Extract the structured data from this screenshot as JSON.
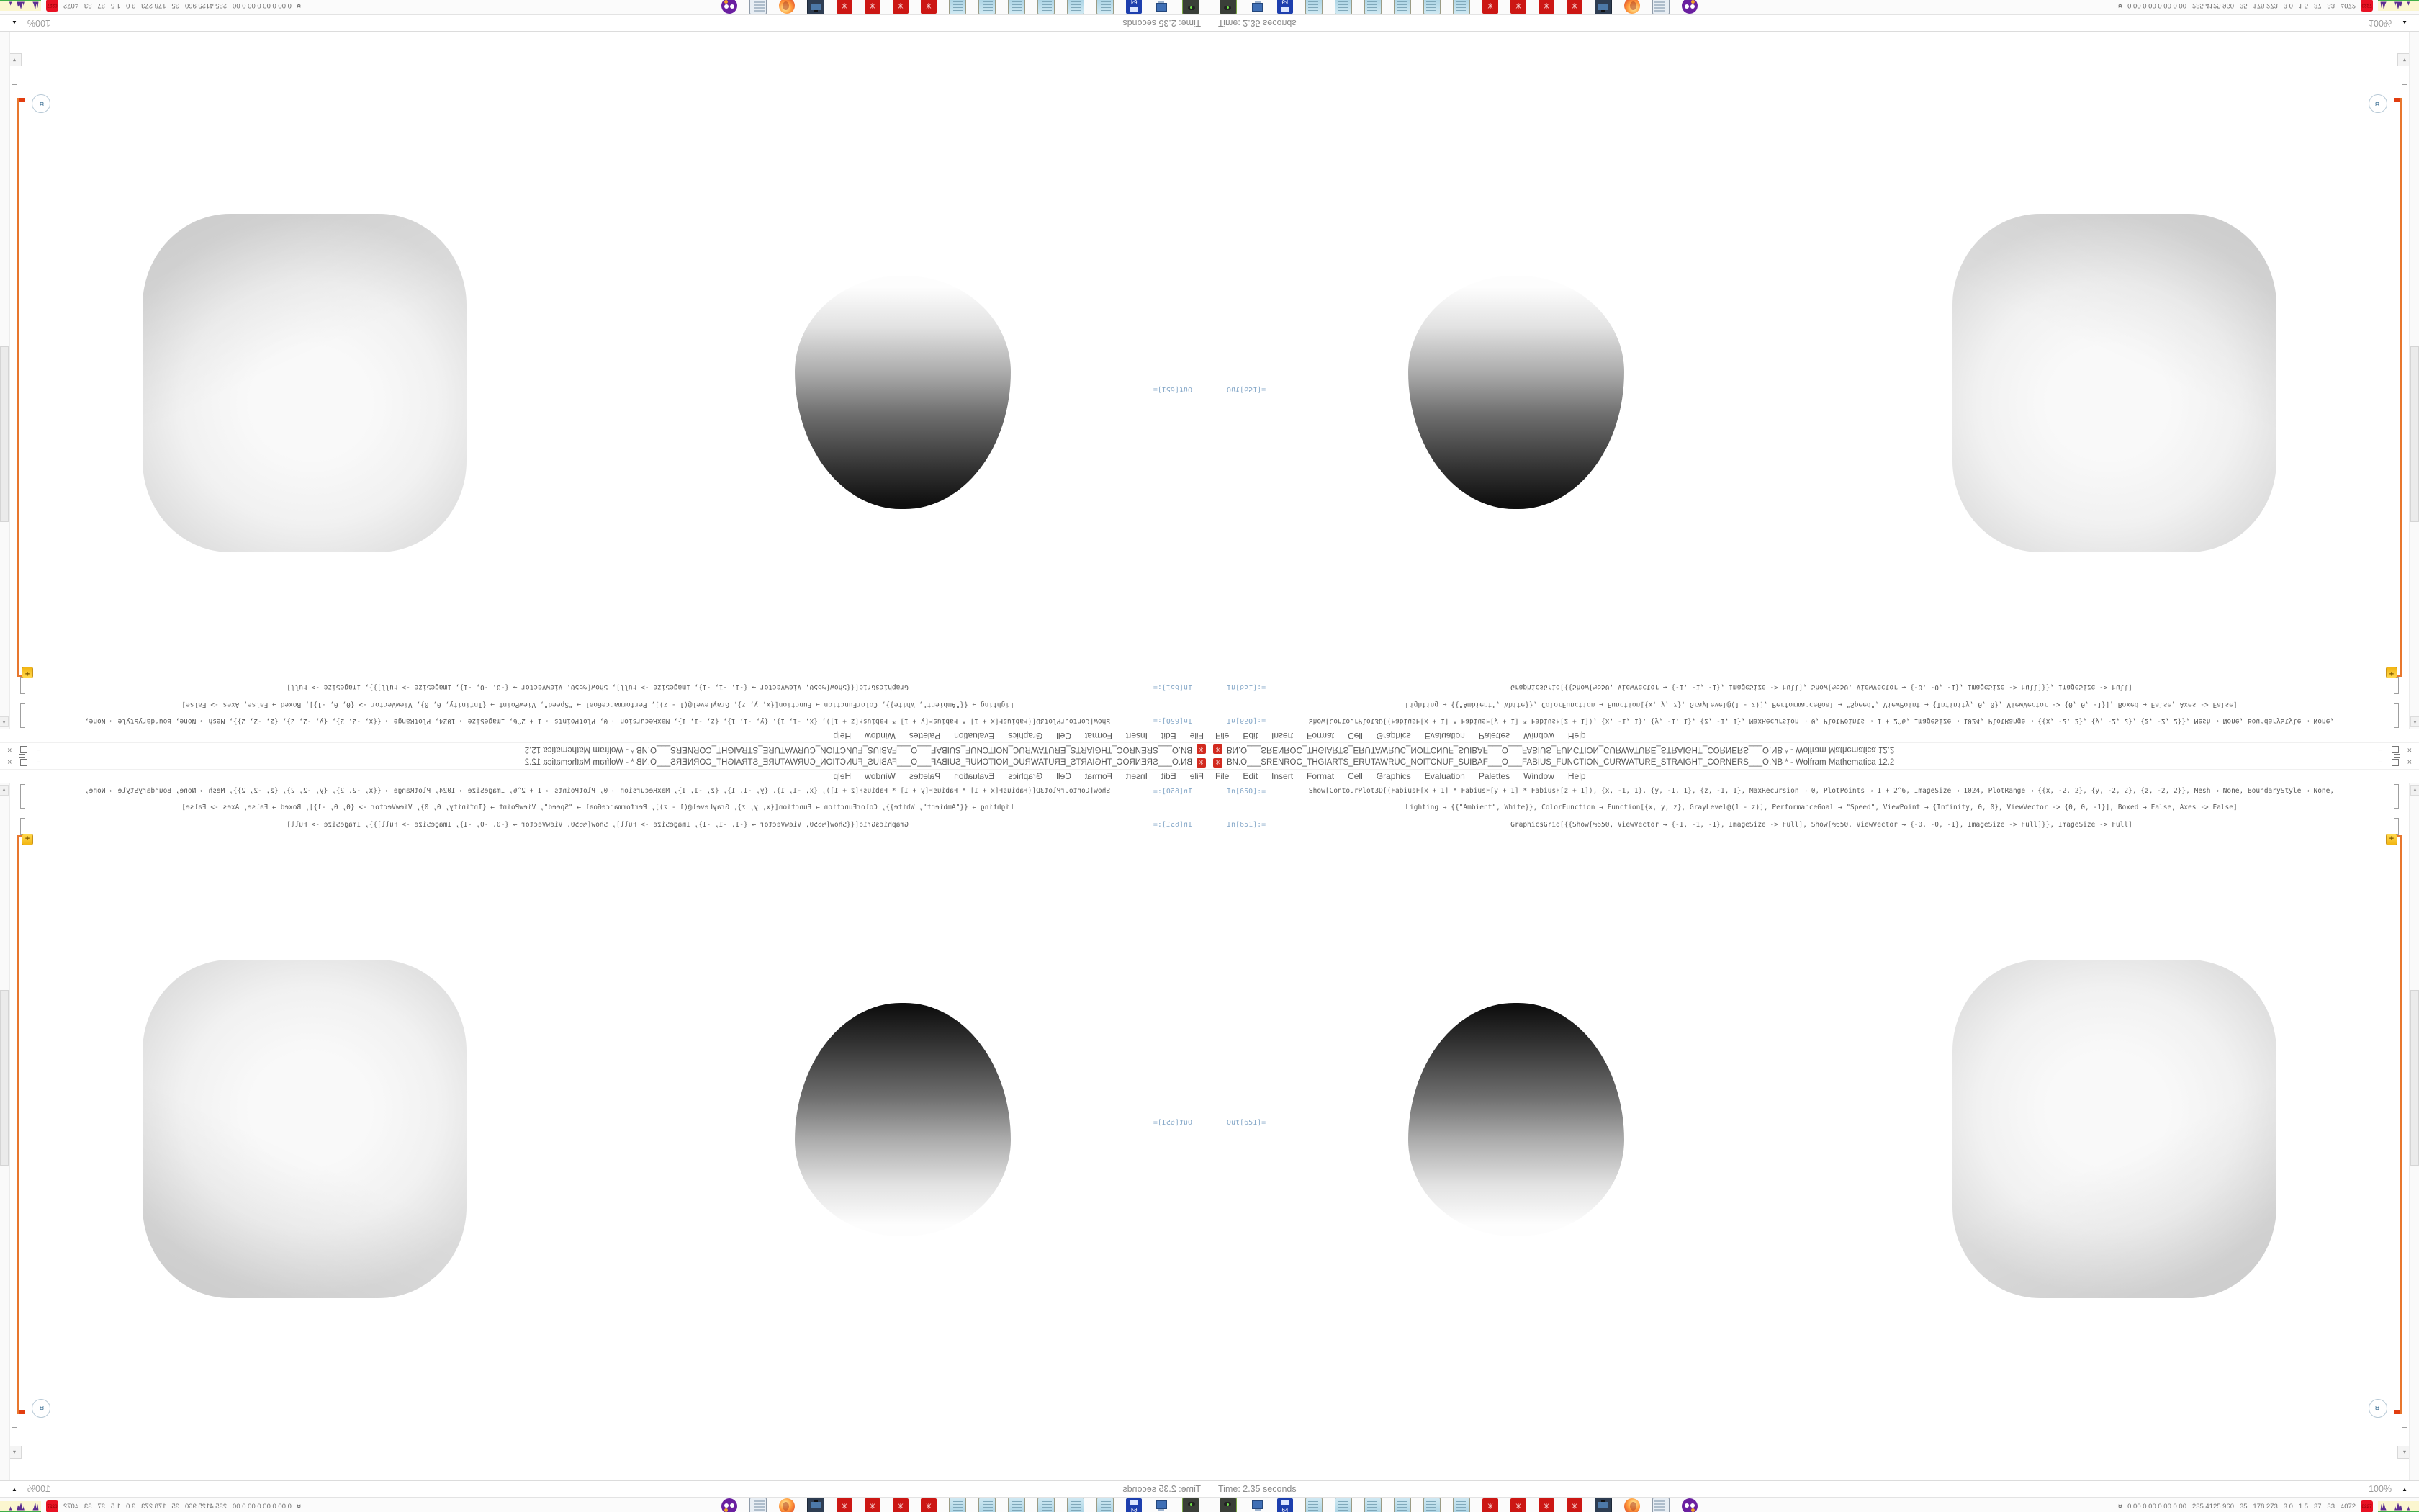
{
  "window": {
    "title": "BN.O___SRENROC_THGIARTS_ERUTAWRUC_NOITCNUF_SUIBAF___O___FABIUS_FUNCTION_CURWATURE_STRAIGHT_CORNERS___O.NB * - Wolfram Mathematica 12.2",
    "app_icon": "mathematica-spiky-red",
    "app_icon_glyph": "✳",
    "controls": {
      "minimize": "−",
      "close": "×"
    },
    "menu": [
      "File",
      "Edit",
      "Insert",
      "Format",
      "Cell",
      "Graphics",
      "Evaluation",
      "Palettes",
      "Window",
      "Help"
    ]
  },
  "notebook": {
    "cell_in_650": {
      "label": "In[650]:=",
      "line1": "Show[ContourPlot3D[(FabiusF[x + 1] * FabiusF[y + 1] * FabiusF[z + 1]), {x, -1, 1}, {y, -1, 1}, {z, -1, 1}, MaxRecursion → 0, PlotPoints → 1 + 2^6, ImageSize → 1024, PlotRange → {{x, -2, 2}, {y, -2, 2}, {z, -2, 2}}, Mesh → None, BoundaryStyle → None,",
      "line2": "Lighting → {{\"Ambient\", White}}, ColorFunction → Function[{x, y, z}, GrayLevel@(1 - z)], PerformanceGoal → \"Speed\", ViewPoint → {Infinity, 0, 0}, ViewVector -> {0, 0, -1}], Boxed → False, Axes -> False]"
    },
    "cell_in_651": {
      "label": "In[651]:=",
      "line1": "GraphicsGrid[{{Show[%650, ViewVector → {-1, -1, -1}, ImageSize -> Full], Show[%650, ViewVector → {-0, -0, -1}, ImageSize -> Full]}}, ImageSize -> Full]"
    },
    "cell_out_651": {
      "label": "Out[651]=",
      "graphics": [
        "fabius-blob-corner-view-dark-top-gradient",
        "fabius-squircle-top-view-light"
      ]
    },
    "action_badge": "+",
    "jump_chevron": "»",
    "elide_arrow": "▾",
    "scroll_up_arrow": "▲"
  },
  "status_bar": {
    "time": "Time: 2.35 seconds",
    "magnification": "100%",
    "magnification_arrow": "▲"
  },
  "taskbar": {
    "icons": [
      "screen-recorder-green",
      "computer-monitor-user",
      "floppy-64",
      "notepad",
      "notepad",
      "notepad",
      "notepad",
      "notepad",
      "notepad",
      "mathematica-red-gear",
      "mathematica-red-gear",
      "mathematica-red-gear",
      "mathematica-red-gear",
      "monitor-camera-dark",
      "firefox",
      "script-scroll",
      "owl-purple"
    ],
    "gear_glyph": "✳",
    "tray": {
      "expand_chevron": "«",
      "numbers": "0.00 0.00 0.00 0.00   235 4125 960   35   178 273   3.0   1.5   37   33   4072",
      "badge": "8227",
      "widgets": [
        "cpu-history-purple-graph",
        "network-green-line",
        "disk-activity-brown"
      ]
    }
  },
  "colors": {
    "app_red": "#d22a1f",
    "bracket_orange": "#e8772e",
    "label_blue": "#86a8c8",
    "taskbar_red": "#cc1714"
  },
  "composition_note": "screenshot mirrored 4-way: original quadrant bottom-right"
}
